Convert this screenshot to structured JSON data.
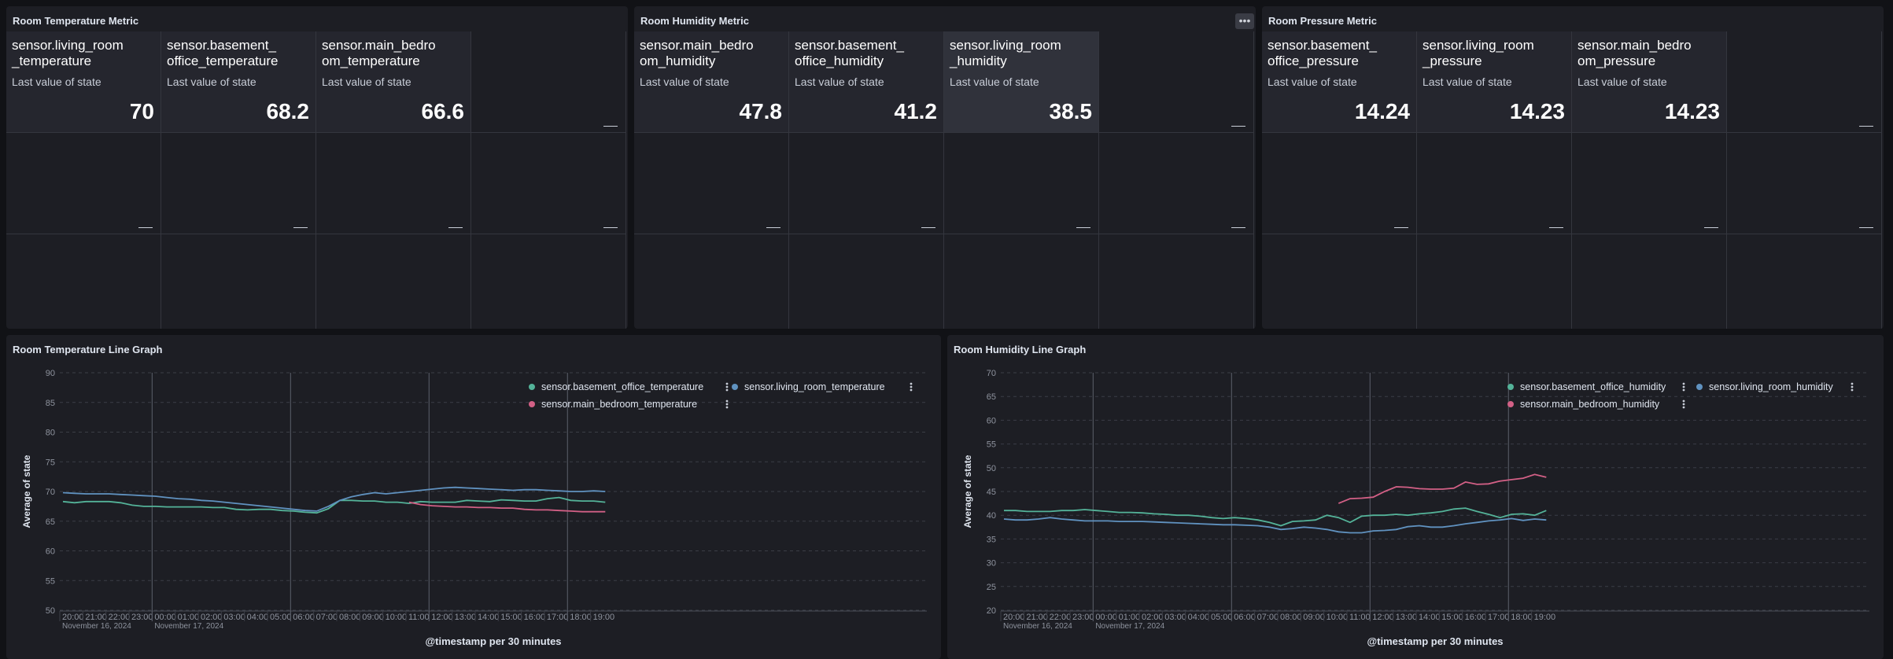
{
  "panels": {
    "temp_metric": {
      "title": "Room Temperature Metric",
      "tiles": [
        {
          "name": "sensor.living_room\n_temperature",
          "subtitle": "Last value of state",
          "value": "70"
        },
        {
          "name": "sensor.basement_\noffice_temperature",
          "subtitle": "Last value of state",
          "value": "68.2"
        },
        {
          "name": "sensor.main_bedro\nom_temperature",
          "subtitle": "Last value of state",
          "value": "66.6"
        }
      ]
    },
    "humidity_metric": {
      "title": "Room Humidity Metric",
      "menu_icon": "more-horizontal-icon",
      "tiles": [
        {
          "name": "sensor.main_bedro\nom_humidity",
          "subtitle": "Last value of state",
          "value": "47.8"
        },
        {
          "name": "sensor.basement_\noffice_humidity",
          "subtitle": "Last value of state",
          "value": "41.2"
        },
        {
          "name": "sensor.living_room\n_humidity",
          "subtitle": "Last value of state",
          "value": "38.5"
        }
      ]
    },
    "pressure_metric": {
      "title": "Room Pressure Metric",
      "tiles": [
        {
          "name": "sensor.basement_\noffice_pressure",
          "subtitle": "Last value of state",
          "value": "14.24"
        },
        {
          "name": "sensor.living_room\n_pressure",
          "subtitle": "Last value of state",
          "value": "14.23"
        },
        {
          "name": "sensor.main_bedro\nom_pressure",
          "subtitle": "Last value of state",
          "value": "14.23"
        }
      ]
    },
    "temp_line": {
      "title": "Room Temperature Line Graph"
    },
    "humidity_line": {
      "title": "Room Humidity Line Graph"
    }
  },
  "colors": {
    "teal": "#54b399",
    "blue": "#6092c0",
    "pink": "#d36086"
  },
  "chart_data": [
    {
      "type": "line",
      "ylabel": "Average of state",
      "xlabel": "@timestamp per 30 minutes",
      "ylim": [
        50,
        90
      ],
      "yticks": [
        50,
        55,
        60,
        65,
        70,
        75,
        80,
        85,
        90
      ],
      "x_tick_labels": [
        "20:00",
        "21:00",
        "22:00",
        "23:00",
        "00:00",
        "01:00",
        "02:00",
        "03:00",
        "04:00",
        "05:00",
        "06:00",
        "07:00",
        "08:00",
        "09:00",
        "10:00",
        "11:00",
        "12:00",
        "13:00",
        "14:00",
        "15:00",
        "16:00",
        "17:00",
        "18:00",
        "19:00"
      ],
      "x_date_labels": [
        {
          "at": "20:00",
          "text": "November 16, 2024"
        },
        {
          "at": "00:00",
          "text": "November 17, 2024"
        }
      ],
      "grid": true,
      "legend": "top-right",
      "series": [
        {
          "name": "sensor.basement_office_temperature",
          "color": "teal",
          "x": [
            "20:00",
            "20:30",
            "21:00",
            "21:30",
            "22:00",
            "22:30",
            "23:00",
            "23:30",
            "00:00",
            "00:30",
            "01:00",
            "01:30",
            "02:00",
            "02:30",
            "03:00",
            "03:30",
            "04:00",
            "04:30",
            "05:00",
            "05:30",
            "06:00",
            "06:30",
            "07:00",
            "07:30",
            "08:00",
            "08:30",
            "09:00",
            "09:30",
            "10:00",
            "10:30",
            "11:00",
            "11:30",
            "12:00",
            "12:30",
            "13:00",
            "13:30",
            "14:00",
            "14:30",
            "15:00",
            "15:30",
            "16:00",
            "16:30",
            "17:00",
            "17:30",
            "18:00",
            "18:30",
            "19:00",
            "19:30"
          ],
          "y": [
            68.3,
            68.1,
            68.3,
            68.3,
            68.3,
            68.1,
            67.7,
            67.5,
            67.5,
            67.4,
            67.4,
            67.4,
            67.4,
            67.3,
            67.3,
            67.0,
            66.9,
            67.0,
            67.0,
            66.8,
            66.7,
            66.5,
            66.4,
            67.1,
            68.5,
            68.5,
            68.4,
            68.4,
            68.2,
            68.2,
            68.0,
            68.3,
            68.2,
            68.2,
            68.2,
            68.5,
            68.4,
            68.3,
            68.6,
            68.5,
            68.4,
            68.4,
            68.8,
            69.0,
            68.5,
            68.4,
            68.4,
            68.2
          ]
        },
        {
          "name": "sensor.living_room_temperature",
          "color": "blue",
          "x": [
            "20:00",
            "20:30",
            "21:00",
            "21:30",
            "22:00",
            "22:30",
            "23:00",
            "23:30",
            "00:00",
            "00:30",
            "01:00",
            "01:30",
            "02:00",
            "02:30",
            "03:00",
            "03:30",
            "04:00",
            "04:30",
            "05:00",
            "05:30",
            "06:00",
            "06:30",
            "07:00",
            "07:30",
            "08:00",
            "08:30",
            "09:00",
            "09:30",
            "10:00",
            "10:30",
            "11:00",
            "11:30",
            "12:00",
            "12:30",
            "13:00",
            "13:30",
            "14:00",
            "14:30",
            "15:00",
            "15:30",
            "16:00",
            "16:30",
            "17:00",
            "17:30",
            "18:00",
            "18:30",
            "19:00",
            "19:30"
          ],
          "y": [
            69.8,
            69.7,
            69.6,
            69.6,
            69.6,
            69.5,
            69.4,
            69.3,
            69.2,
            69.0,
            68.8,
            68.7,
            68.5,
            68.4,
            68.2,
            68.0,
            67.8,
            67.6,
            67.4,
            67.2,
            67.0,
            66.8,
            66.7,
            67.5,
            68.5,
            69.1,
            69.5,
            69.8,
            69.6,
            69.8,
            70.0,
            70.2,
            70.4,
            70.6,
            70.7,
            70.6,
            70.5,
            70.4,
            70.3,
            70.2,
            70.3,
            70.3,
            70.2,
            70.1,
            70.0,
            70.0,
            70.1,
            70.0
          ]
        },
        {
          "name": "sensor.main_bedroom_temperature",
          "color": "pink",
          "x": [
            "11:00",
            "11:30",
            "12:00",
            "12:30",
            "13:00",
            "13:30",
            "14:00",
            "14:30",
            "15:00",
            "15:30",
            "16:00",
            "16:30",
            "17:00",
            "17:30",
            "18:00",
            "18:30",
            "19:00",
            "19:30"
          ],
          "y": [
            68.2,
            67.8,
            67.6,
            67.5,
            67.4,
            67.4,
            67.3,
            67.3,
            67.2,
            67.2,
            67.0,
            66.9,
            66.9,
            66.8,
            66.7,
            66.6,
            66.6,
            66.6
          ]
        }
      ]
    },
    {
      "type": "line",
      "ylabel": "Average of state",
      "xlabel": "@timestamp per 30 minutes",
      "ylim": [
        20,
        70
      ],
      "yticks": [
        20,
        25,
        30,
        35,
        40,
        45,
        50,
        55,
        60,
        65,
        70
      ],
      "x_tick_labels": [
        "20:00",
        "21:00",
        "22:00",
        "23:00",
        "00:00",
        "01:00",
        "02:00",
        "03:00",
        "04:00",
        "05:00",
        "06:00",
        "07:00",
        "08:00",
        "09:00",
        "10:00",
        "11:00",
        "12:00",
        "13:00",
        "14:00",
        "15:00",
        "16:00",
        "17:00",
        "18:00",
        "19:00"
      ],
      "x_date_labels": [
        {
          "at": "20:00",
          "text": "November 16, 2024"
        },
        {
          "at": "00:00",
          "text": "November 17, 2024"
        }
      ],
      "grid": true,
      "legend": "top-right",
      "series": [
        {
          "name": "sensor.basement_office_humidity",
          "color": "teal",
          "x": [
            "20:00",
            "20:30",
            "21:00",
            "21:30",
            "22:00",
            "22:30",
            "23:00",
            "23:30",
            "00:00",
            "00:30",
            "01:00",
            "01:30",
            "02:00",
            "02:30",
            "03:00",
            "03:30",
            "04:00",
            "04:30",
            "05:00",
            "05:30",
            "06:00",
            "06:30",
            "07:00",
            "07:30",
            "08:00",
            "08:30",
            "09:00",
            "09:30",
            "10:00",
            "10:30",
            "11:00",
            "11:30",
            "12:00",
            "12:30",
            "13:00",
            "13:30",
            "14:00",
            "14:30",
            "15:00",
            "15:30",
            "16:00",
            "16:30",
            "17:00",
            "17:30",
            "18:00",
            "18:30",
            "19:00",
            "19:30"
          ],
          "y": [
            41.0,
            41.0,
            40.8,
            40.8,
            40.8,
            41.0,
            41.0,
            41.2,
            41.0,
            40.8,
            40.6,
            40.6,
            40.5,
            40.3,
            40.2,
            40.0,
            40.0,
            39.8,
            39.5,
            39.3,
            39.5,
            39.3,
            39.0,
            38.5,
            37.8,
            38.7,
            38.8,
            39.0,
            40.0,
            39.5,
            38.5,
            39.8,
            40.0,
            40.0,
            40.2,
            40.0,
            40.3,
            40.5,
            40.8,
            41.3,
            41.5,
            40.8,
            40.2,
            39.5,
            40.2,
            40.3,
            40.0,
            41.0
          ]
        },
        {
          "name": "sensor.living_room_humidity",
          "color": "blue",
          "x": [
            "20:00",
            "20:30",
            "21:00",
            "21:30",
            "22:00",
            "22:30",
            "23:00",
            "23:30",
            "00:00",
            "00:30",
            "01:00",
            "01:30",
            "02:00",
            "02:30",
            "03:00",
            "03:30",
            "04:00",
            "04:30",
            "05:00",
            "05:30",
            "06:00",
            "06:30",
            "07:00",
            "07:30",
            "08:00",
            "08:30",
            "09:00",
            "09:30",
            "10:00",
            "10:30",
            "11:00",
            "11:30",
            "12:00",
            "12:30",
            "13:00",
            "13:30",
            "14:00",
            "14:30",
            "15:00",
            "15:30",
            "16:00",
            "16:30",
            "17:00",
            "17:30",
            "18:00",
            "18:30",
            "19:00",
            "19:30"
          ],
          "y": [
            39.2,
            39.0,
            39.0,
            39.2,
            39.5,
            39.2,
            39.0,
            38.8,
            38.8,
            38.8,
            38.7,
            38.7,
            38.7,
            38.6,
            38.5,
            38.4,
            38.3,
            38.2,
            38.1,
            38.0,
            38.0,
            37.9,
            37.8,
            37.5,
            37.0,
            37.2,
            37.5,
            37.3,
            37.0,
            36.5,
            36.3,
            36.3,
            36.7,
            36.8,
            37.0,
            37.6,
            37.8,
            37.5,
            37.5,
            37.8,
            38.2,
            38.5,
            38.8,
            39.0,
            39.3,
            38.9,
            39.2,
            39.0
          ]
        },
        {
          "name": "sensor.main_bedroom_humidity",
          "color": "pink",
          "x": [
            "10:30",
            "11:00",
            "11:30",
            "12:00",
            "12:30",
            "13:00",
            "13:30",
            "14:00",
            "14:30",
            "15:00",
            "15:30",
            "16:00",
            "16:30",
            "17:00",
            "17:30",
            "18:00",
            "18:30",
            "19:00",
            "19:30"
          ],
          "y": [
            42.5,
            43.5,
            43.6,
            43.8,
            45.0,
            46.0,
            45.9,
            45.6,
            45.5,
            45.5,
            45.7,
            47.0,
            46.5,
            46.6,
            47.2,
            47.5,
            47.8,
            48.6,
            48.0
          ]
        }
      ]
    }
  ]
}
